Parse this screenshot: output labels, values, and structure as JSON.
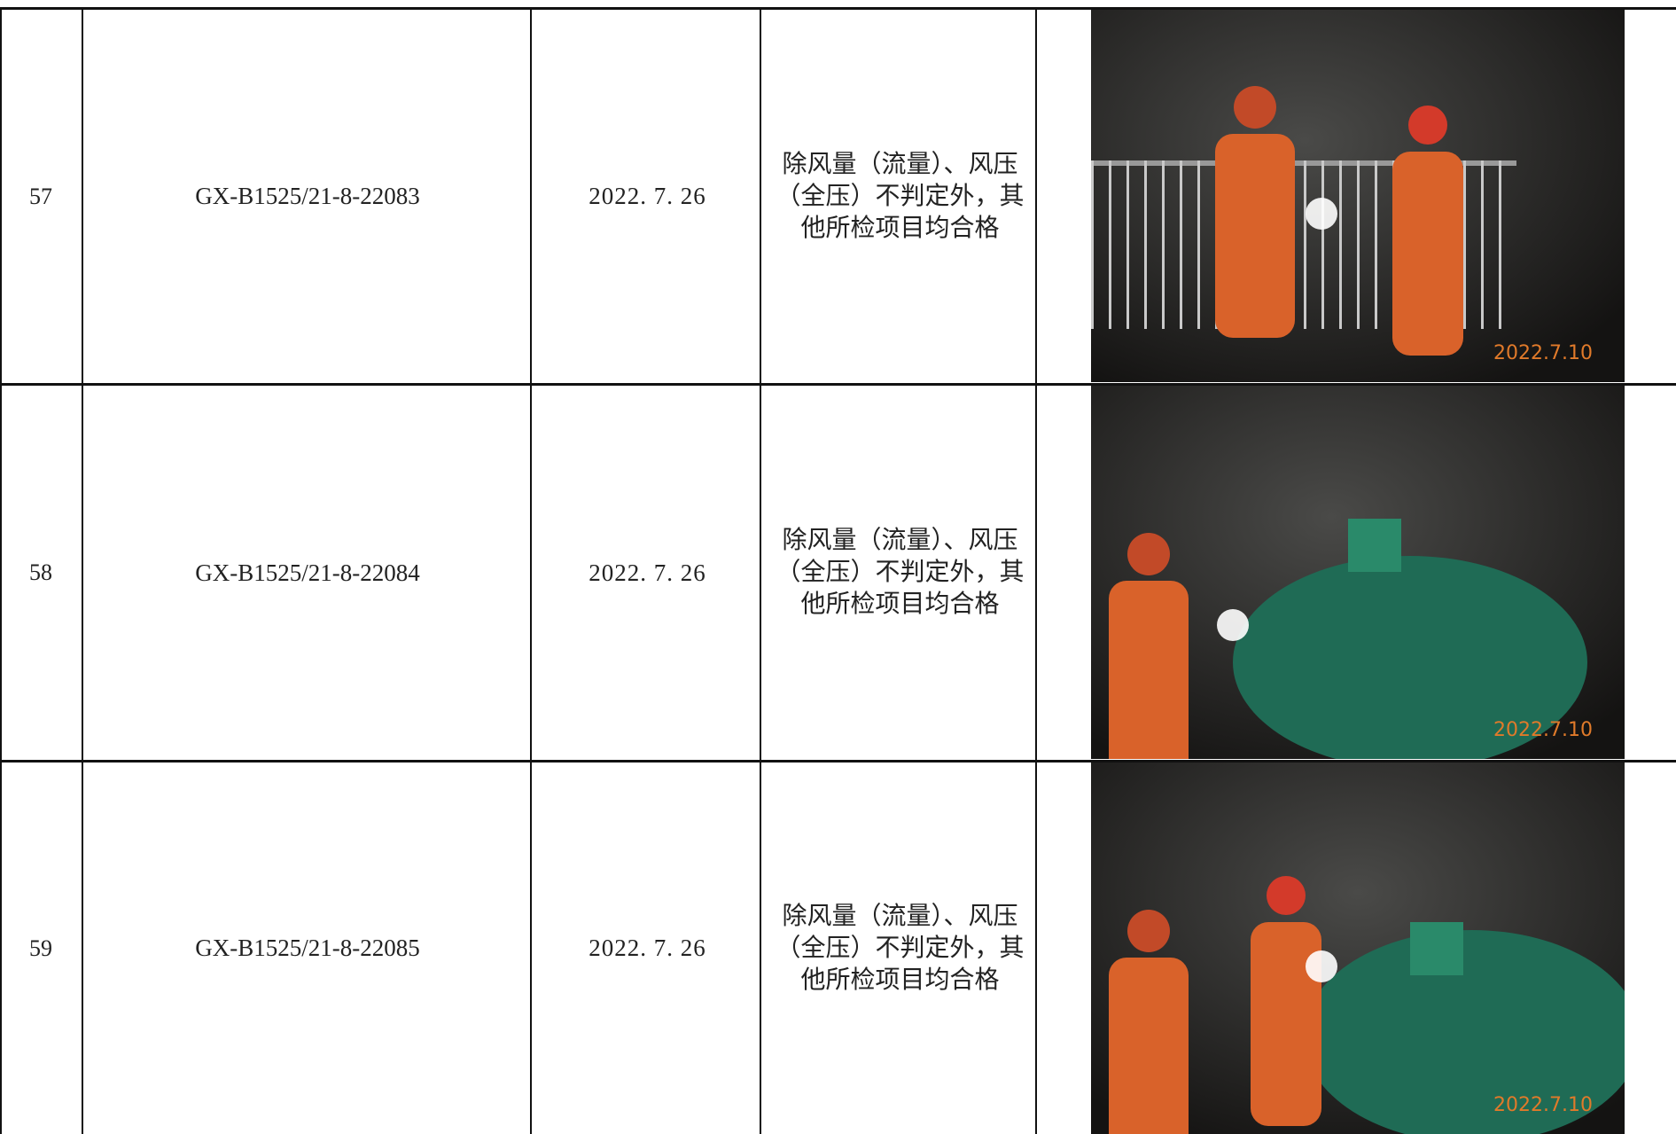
{
  "table": {
    "rows": [
      {
        "no": "57",
        "code": "GX-B1525/21-8-22083",
        "date": "2022. 7. 26",
        "result": "除风量（流量）、风压（全压）不判定外，其他所检项目均合格",
        "photo_date": "2022.7.10"
      },
      {
        "no": "58",
        "code": "GX-B1525/21-8-22084",
        "date": "2022. 7. 26",
        "result": "除风量（流量）、风压（全压）不判定外，其他所检项目均合格",
        "photo_date": "2022.7.10"
      },
      {
        "no": "59",
        "code": "GX-B1525/21-8-22085",
        "date": "2022. 7. 26",
        "result": "除风量（流量）、风压（全压）不判定外，其他所检项目均合格",
        "photo_date": "2022.7.10"
      }
    ]
  }
}
